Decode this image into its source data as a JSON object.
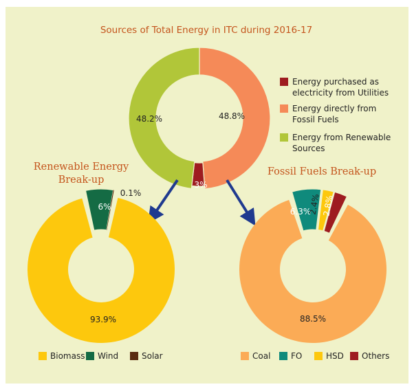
{
  "chart_data": [
    {
      "type": "pie",
      "title": "Sources of Total Energy in ITC during 2016-17",
      "categories": [
        "Energy purchased as electricity from Utilities",
        "Energy directly from Fossil Fuels",
        "Energy from Renewable Sources"
      ],
      "legend_lines": [
        [
          "Energy purchased as",
          "electricity from Utilities"
        ],
        [
          "Energy directly from",
          "Fossil Fuels"
        ],
        [
          "Energy from Renewable",
          "Sources"
        ]
      ],
      "values": [
        3,
        48.8,
        48.2
      ],
      "labels": [
        "3%",
        "48.8%",
        "48.2%"
      ],
      "colors": [
        "#9e1c20",
        "#f58a58",
        "#b1c639"
      ],
      "legend_placement": "right"
    },
    {
      "type": "pie",
      "title": "Renewable Energy Break-up",
      "categories": [
        "Biomass",
        "Wind",
        "Solar"
      ],
      "values": [
        93.9,
        6,
        0.1
      ],
      "labels": [
        "93.9%",
        "6%",
        "0.1%"
      ],
      "colors": [
        "#fdc80d",
        "#146b44",
        "#5a2b10"
      ],
      "legend_placement": "bottom"
    },
    {
      "type": "pie",
      "title": "Fossil Fuels Break-up",
      "categories": [
        "Coal",
        "FO",
        "HSD",
        "Others"
      ],
      "values": [
        88.5,
        6.3,
        2.4,
        2.8
      ],
      "labels": [
        "88.5%",
        "6.3%",
        "2.4%",
        "2.8%"
      ],
      "colors": [
        "#fbab56",
        "#0f8a7c",
        "#fdc80d",
        "#9e1c20"
      ],
      "legend_placement": "bottom"
    }
  ]
}
